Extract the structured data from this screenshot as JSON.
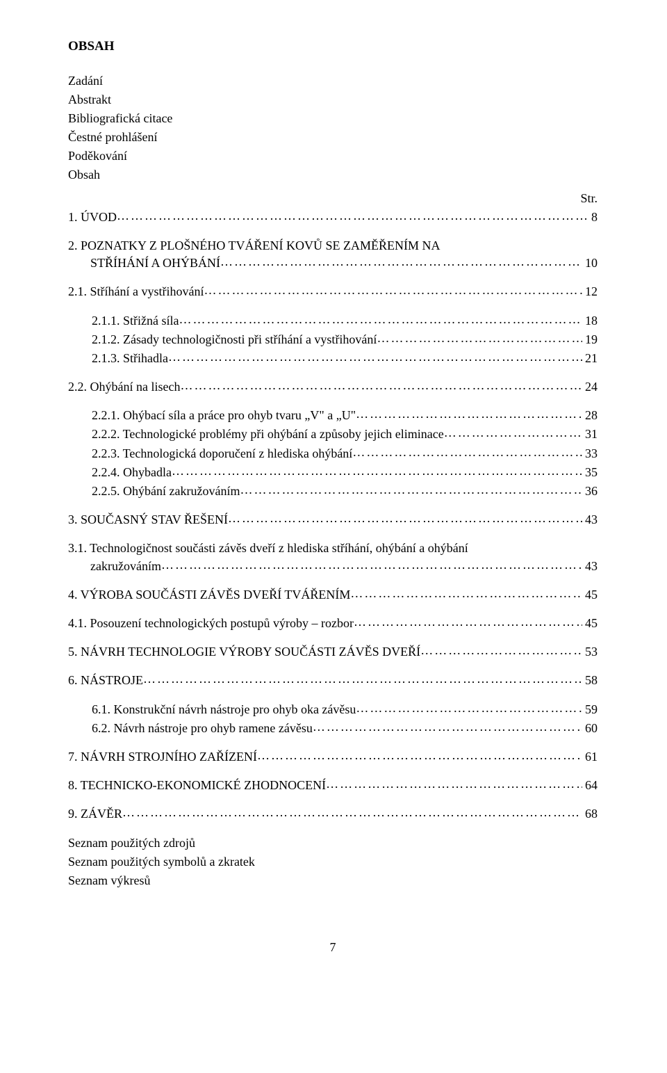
{
  "title": "OBSAH",
  "front_matter": [
    "Zadání",
    "Abstrakt",
    "Bibliografická citace",
    "Čestné prohlášení",
    "Poděkování",
    "Obsah"
  ],
  "str_label": "Str.",
  "toc": [
    {
      "level": 0,
      "label": "1. ÚVOD",
      "page": "8",
      "space_after": 16
    },
    {
      "level": 0,
      "label": "2. POZNATKY Z PLOŠNÉHO TVÁŘENÍ KOVŮ SE ZAMĚŘENÍM NA",
      "label2": "STŘÍHÁNÍ A OHÝBÁNÍ",
      "page": "10",
      "space_after": 16
    },
    {
      "level": 0,
      "label": "2.1. Stříhání a vystřihování",
      "page": "12",
      "space_after": 16
    },
    {
      "level": 1,
      "label": "2.1.1. Střižná síla",
      "page": "18",
      "space_after": 0
    },
    {
      "level": 1,
      "label": "2.1.2. Zásady technologičnosti při stříhání a vystřihování",
      "page": "19",
      "space_after": 0
    },
    {
      "level": 1,
      "label": "2.1.3. Střihadla",
      "page": "21",
      "space_after": 16
    },
    {
      "level": 0,
      "label": "2.2. Ohýbání na lisech",
      "page": "24",
      "space_after": 16
    },
    {
      "level": 1,
      "label": "2.2.1. Ohýbací síla a práce pro ohyb tvaru „V\" a „U\"",
      "page": "28",
      "space_after": 0
    },
    {
      "level": 1,
      "label": "2.2.2. Technologické problémy při ohýbání a způsoby jejich eliminace",
      "page": "31",
      "space_after": 0
    },
    {
      "level": 1,
      "label": "2.2.3. Technologická doporučení z hlediska ohýbání",
      "page": "33",
      "space_after": 0
    },
    {
      "level": 1,
      "label": "2.2.4. Ohybadla",
      "page": "35",
      "space_after": 0
    },
    {
      "level": 1,
      "label": "2.2.5. Ohýbání zakružováním",
      "page": "36",
      "space_after": 16
    },
    {
      "level": 0,
      "label": "3. SOUČASNÝ STAV ŘEŠENÍ",
      "page": "43",
      "space_after": 16
    },
    {
      "level": 0,
      "label": "3.1. Technologičnost součásti závěs dveří z hlediska stříhání, ohýbání a ohýbání",
      "label2": "zakružováním",
      "page": "43",
      "space_after": 16
    },
    {
      "level": 0,
      "label": "4. VÝROBA SOUČÁSTI ZÁVĚS DVEŘÍ TVÁŘENÍM",
      "page": "45",
      "space_after": 16
    },
    {
      "level": 0,
      "label": "4.1. Posouzení technologických  postupů výroby – rozbor",
      "page": "45",
      "space_after": 16
    },
    {
      "level": 0,
      "label": "5. NÁVRH TECHNOLOGIE VÝROBY SOUČÁSTI ZÁVĚS DVEŘÍ",
      "page": "53",
      "space_after": 16
    },
    {
      "level": 0,
      "label": "6. NÁSTROJE",
      "page": "58",
      "space_after": 16
    },
    {
      "level": 1,
      "label": "6.1. Konstrukční návrh nástroje pro ohyb oka závěsu",
      "page": "59",
      "space_after": 0
    },
    {
      "level": 1,
      "label": "6.2. Návrh nástroje pro ohyb ramene závěsu",
      "page": "60",
      "space_after": 16
    },
    {
      "level": 0,
      "label": "7. NÁVRH STROJNÍHO ZAŘÍZENÍ",
      "page": "61",
      "space_after": 16
    },
    {
      "level": 0,
      "label": "8. TECHNICKO-EKONOMICKÉ ZHODNOCENÍ",
      "page": "64",
      "space_after": 16
    },
    {
      "level": 0,
      "label": "9. ZÁVĚR",
      "page": "68",
      "space_after": 16
    }
  ],
  "back_matter": [
    "Seznam použitých zdrojů",
    "Seznam použitých symbolů a zkratek",
    "Seznam výkresů"
  ],
  "page_number": "7",
  "leader_dots": "…………………………………………………………………………………………………………………………………………………"
}
